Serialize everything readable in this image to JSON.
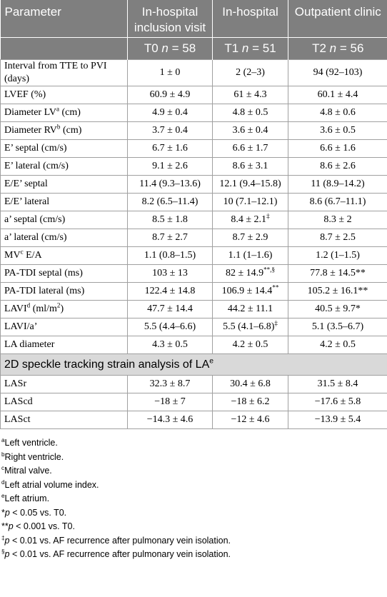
{
  "table": {
    "header": [
      [
        "Parameter",
        "In-hospital inclusion visit",
        "In-hospital",
        "Outpatient clinic"
      ],
      [
        "",
        {
          "text": "T0 ",
          "italic": "n",
          "tail": " = 58"
        },
        {
          "text": "T1 ",
          "italic": "n",
          "tail": " = 51"
        },
        {
          "text": "T2 ",
          "italic": "n",
          "tail": " = 56"
        }
      ]
    ],
    "rows": [
      [
        "Interval from TTE to PVI (days)",
        "1 ± 0",
        "2 (2–3)",
        "94 (92–103)"
      ],
      [
        "LVEF (%)",
        "60.9 ± 4.9",
        "61 ± 4.3",
        "60.1 ± 4.4"
      ],
      [
        {
          "text": "Diameter LV",
          "sup": "a",
          "tail": " (cm)"
        },
        "4.9 ± 0.4",
        "4.8 ± 0.5",
        "4.8 ± 0.6"
      ],
      [
        {
          "text": "Diameter RV",
          "sup": "b",
          "tail": " (cm)"
        },
        "3.7 ± 0.4",
        "3.6 ± 0.4",
        "3.6 ± 0.5"
      ],
      [
        "E’ septal (cm/s)",
        "6.7 ± 1.6",
        "6.6 ± 1.7",
        "6.6 ± 1.6"
      ],
      [
        "E’ lateral (cm/s)",
        "9.1 ± 2.6",
        "8.6 ± 3.1",
        "8.6 ± 2.6"
      ],
      [
        "E/E’ septal",
        "11.4 (9.3–13.6)",
        "12.1 (9.4–15.8)",
        "11 (8.9–14.2)"
      ],
      [
        "E/E’ lateral",
        "8.2 (6.5–11.4)",
        "10 (7.1–12.1)",
        "8.6 (6.7–11.1)"
      ],
      [
        "a’ septal (cm/s)",
        "8.5 ± 1.8",
        {
          "text": "8.4 ± 2.1",
          "sup": "‡"
        },
        "8.3 ± 2"
      ],
      [
        "a’ lateral (cm/s)",
        "8.7 ± 2.7",
        "8.7 ± 2.9",
        "8.7 ± 2.5"
      ],
      [
        {
          "text": "MV",
          "sup": "c",
          "tail": " E/A"
        },
        "1.1 (0.8–1.5)",
        "1.1 (1–1.6)",
        "1.2 (1–1.5)"
      ],
      [
        "PA-TDI septal (ms)",
        "103 ± 13",
        {
          "text": "82 ± 14.9",
          "sup": "**,§"
        },
        "77.8 ± 14.5**"
      ],
      [
        "PA-TDI lateral (ms)",
        "122.4 ± 14.8",
        {
          "text": "106.9 ± 14.4",
          "sup": "**"
        },
        "105.2 ± 16.1**"
      ],
      [
        {
          "text": "LAVI",
          "sup": "d",
          "tail": " (ml/m",
          "sup2": "2",
          "end": ")"
        },
        "47.7 ± 14.4",
        "44.2 ± 11.1",
        "40.5 ± 9.7*"
      ],
      [
        "LAVI/a’",
        "5.5 (4.4–6.6)",
        {
          "text": "5.5 (4.1–6.8)",
          "sup": "‡"
        },
        "5.1 (3.5–6.7)"
      ],
      [
        "LA diameter",
        "4.3 ± 0.5",
        "4.2 ± 0.5",
        "4.2 ± 0.5"
      ]
    ],
    "section": {
      "text": "2D speckle tracking strain analysis of LA",
      "sup": "e"
    },
    "section_rows": [
      [
        "LASr",
        "32.3 ± 8.7",
        "30.4 ± 6.8",
        "31.5 ± 8.4"
      ],
      [
        "LAScd",
        "−18 ± 7",
        "−18 ± 6.2",
        "−17.6 ± 5.8"
      ],
      [
        "LASct",
        "−14.3 ± 4.6",
        "−12 ± 4.6",
        "−13.9 ± 5.4"
      ]
    ]
  },
  "footnotes": [
    {
      "sup": "a",
      "text": "Left ventricle."
    },
    {
      "sup": "b",
      "text": "Right ventricle."
    },
    {
      "sup": "c",
      "text": "Mitral valve."
    },
    {
      "sup": "d",
      "text": "Left atrial volume index."
    },
    {
      "sup": "e",
      "text": "Left atrium."
    },
    {
      "mark": "*",
      "italic": "p",
      "text": " < 0.05 vs. T0."
    },
    {
      "mark": "**",
      "italic": "p",
      "text": " < 0.001 vs. T0."
    },
    {
      "sup": "‡",
      "italic": "p",
      "text": " < 0.01 vs. AF recurrence after pulmonary vein isolation."
    },
    {
      "sup": "§",
      "italic": "p",
      "text": " < 0.01 vs. AF recurrence after pulmonary vein isolation."
    }
  ]
}
